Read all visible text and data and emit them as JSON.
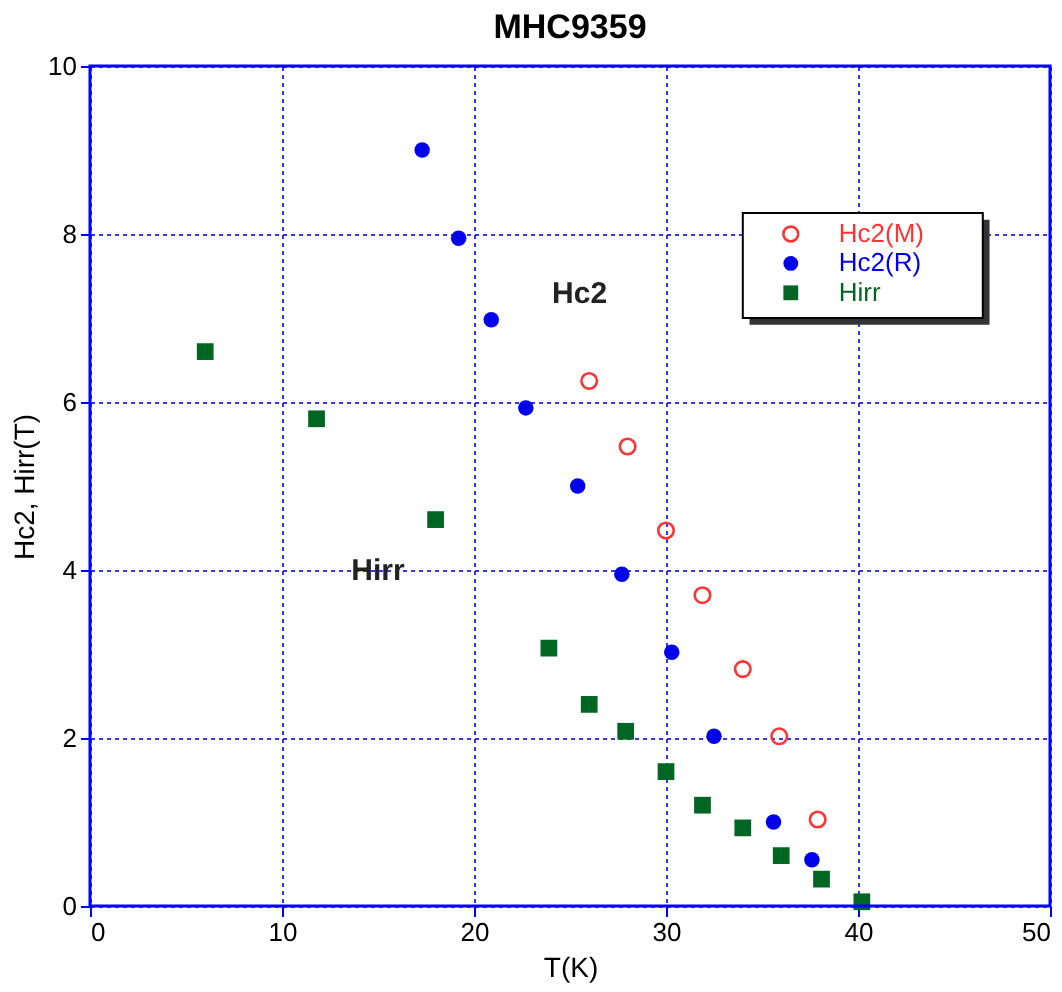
{
  "chart_data": {
    "type": "scatter",
    "title": "MHC9359",
    "xlabel": "T(K)",
    "ylabel": "Hc2, Hirr(T)",
    "xlim": [
      0,
      50
    ],
    "xticks": [
      0,
      10,
      20,
      30,
      40,
      50
    ],
    "ylim": [
      0,
      10
    ],
    "yticks": [
      0,
      2,
      4,
      6,
      8,
      10
    ],
    "grid": true,
    "legend": "top right",
    "series": [
      {
        "name": "Hc2(M)",
        "color": "#ff3333",
        "marker": "circle",
        "x": [
          26.0,
          28.0,
          30.0,
          31.9,
          34.0,
          35.9,
          37.9
        ],
        "values": [
          6.25,
          5.47,
          4.47,
          3.7,
          2.82,
          2.02,
          1.03
        ]
      },
      {
        "name": "Hc2(R)",
        "color": "#0000ee",
        "marker": "circle",
        "x": [
          17.3,
          19.2,
          20.9,
          22.7,
          25.4,
          27.7,
          30.3,
          32.5,
          35.6,
          37.6
        ],
        "values": [
          9.0,
          7.95,
          6.98,
          5.93,
          5.0,
          3.95,
          3.02,
          2.02,
          1.0,
          0.55
        ]
      },
      {
        "name": "Hirr",
        "color": "#006622",
        "marker": "square",
        "x": [
          6.0,
          11.8,
          18.0,
          23.9,
          26.0,
          27.9,
          30.0,
          31.9,
          34.0,
          36.0,
          38.1,
          40.2
        ],
        "values": [
          6.6,
          5.8,
          4.6,
          3.07,
          2.4,
          2.08,
          1.6,
          1.2,
          0.93,
          0.6,
          0.32,
          0.05
        ]
      }
    ],
    "annotations": [
      "Hc2",
      "Hirr"
    ]
  }
}
